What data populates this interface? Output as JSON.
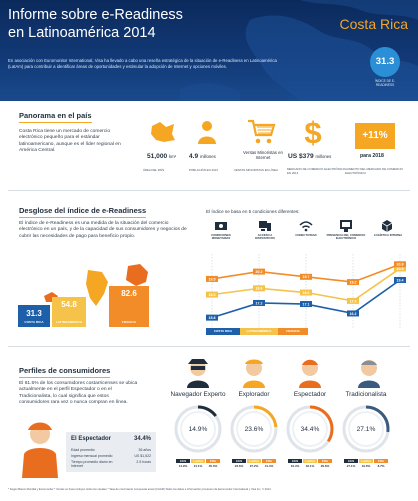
{
  "header": {
    "title_line1": "Informe sobre e-Readiness",
    "title_line2": "en Latinoamérica 2014",
    "country": "Costa Rica",
    "intro": "En asociación con Euromonitor International, Visa ha llevado a cabo una reseña estratégica de la situación de e-Readiness en Latinoamérica (LatAm) para contribuir a identificar áreas de oportunidades y estimular la adopción de Internet y opciones móviles.",
    "score": "31.3",
    "score_label": "ÍNDICE DE E-READINESS"
  },
  "panorama": {
    "title": "Panorama en el país",
    "text": "Costa Rica tiene un mercado de comercio electrónico pequeño para el estándar latinoamericano, aunque es el líder regional en América Central.",
    "stats": [
      {
        "icon": "area-icon",
        "value": "51,000",
        "unit": "km²",
        "label": "ÁREA DEL PAÍS"
      },
      {
        "icon": "population-icon",
        "value": "4.9",
        "unit": "millones",
        "label": "POBLACIÓN EN 2013"
      },
      {
        "icon": "cart-icon",
        "value": "Ventas Minoristas en Internet",
        "unit": "",
        "label": "VENTAS MINORISTAS EN LÍNEA"
      },
      {
        "icon": "dollar-icon",
        "value": "US $379",
        "unit": "millones",
        "label": "MERCADO DE COMERCIO ELECTRÓNICO EN 2013"
      },
      {
        "icon": "growth-icon",
        "value": "+11%",
        "unit": "para 2018",
        "label": "AUMENTO DEL MERCADO DE COMERCIO ELECTRÓNICO"
      }
    ]
  },
  "desglose": {
    "title": "Desglose del índice de e-Readiness",
    "text": "El índice de e-Readiness es una medida de la situación del comercio electrónico en un país, y de la capacidad de sus consumidores y negocios de cubrir las necesidades de pago para beneficio propio.",
    "bars": [
      {
        "value": "31.3",
        "label": "COSTA RICA",
        "color": "#1d5fa8"
      },
      {
        "value": "54.8",
        "label": "LATINOAMÉRICA",
        "color": "#f5c24a"
      },
      {
        "value": "82.6",
        "label": "FRANCIA",
        "color": "#f28c28"
      }
    ],
    "conditions_title": "El índice se basa en 5 condiciones diferentes:",
    "conditions": [
      "CONDICIONES MONETARIAS",
      "ACCESO A DISPOSITIVOS",
      "CONECTIVIDAD",
      "PRESENCIA DEL COMERCIO ELECTRÓNICO",
      "LOGÍSTICA INTERNA"
    ],
    "legend": [
      "COSTA RICA",
      "LATINOAMÉRICA",
      "FRANCIA"
    ]
  },
  "chart_data": {
    "type": "line",
    "categories": [
      "CONDICIONES MONETARIAS",
      "ACCESO A DISPOSITIVOS",
      "CONECTIVIDAD",
      "PRESENCIA DEL COMERCIO ELECTRÓNICO",
      "LOGÍSTICA INTERNA"
    ],
    "series": [
      {
        "name": "COSTA RICA",
        "values": [
          15.8,
          17.2,
          17.1,
          16.2,
          19.4
        ],
        "labels": [
          "15.8",
          "17.2",
          "17.1",
          "16.2",
          "19.4"
        ],
        "color": "#1d5fa8"
      },
      {
        "name": "LATINOAMÉRICA",
        "values": [
          18.0,
          18.6,
          18.2,
          17.4,
          20.5
        ],
        "labels": [
          "18.0",
          "18.6",
          "18.2",
          "17.4",
          "20.5"
        ],
        "color": "#f5c24a"
      },
      {
        "name": "FRANCIA",
        "values": [
          19.5,
          20.2,
          19.7,
          19.2,
          20.9
        ],
        "labels": [
          "19.5",
          "20.2",
          "19.7",
          "19.2",
          "20.9"
        ],
        "color": "#f28c28"
      }
    ],
    "ylim": [
      15,
      21.5
    ]
  },
  "perfiles": {
    "title": "Perfiles de consumidores",
    "text": "El 61.5% de los consumidores costarricenses se ubica actualmente en el perfil Espectador o en el Tradicionalista, lo cual significa que estos consumidores rara vez o nunca compran en línea.",
    "card": {
      "title": "El Espectador",
      "pct": "34.4%",
      "rows": [
        {
          "label": "Edad promedio",
          "value": "36 años"
        },
        {
          "label": "Ingreso mensual promedio",
          "value": "US $1,522"
        },
        {
          "label": "Tiempo promedio diario en Internet",
          "value": "2.5 horas"
        }
      ]
    },
    "personas": [
      {
        "name": "Navegador Experto",
        "pct": "14.9%",
        "fraction": 0.149,
        "cr": "14.9%",
        "latam": "21.1%",
        "fr": "20.3%"
      },
      {
        "name": "Explorador",
        "pct": "23.6%",
        "fraction": 0.236,
        "cr": "23.6%",
        "latam": "27.2%",
        "fr": "41.4%"
      },
      {
        "name": "Espectador",
        "pct": "34.4%",
        "fraction": 0.344,
        "cr": "34.4%",
        "latam": "32.1%",
        "fr": "29.6%"
      },
      {
        "name": "Tradicionalista",
        "pct": "27.1%",
        "fraction": 0.271,
        "cr": "27.1%",
        "latam": "19.6%",
        "fr": "8.7%"
      }
    ],
    "seg_headers": [
      "CCS",
      "LatAm",
      "FRA"
    ]
  },
  "footer": "* Según Banco Mundial y Euromonitor      * Ventas en línea incluyen todos los canales      * Tasa de crecimiento compuesta anual (CAGR)      Todos los datos e información provienen de Euromonitor International y Visa Inc.   © 2014"
}
